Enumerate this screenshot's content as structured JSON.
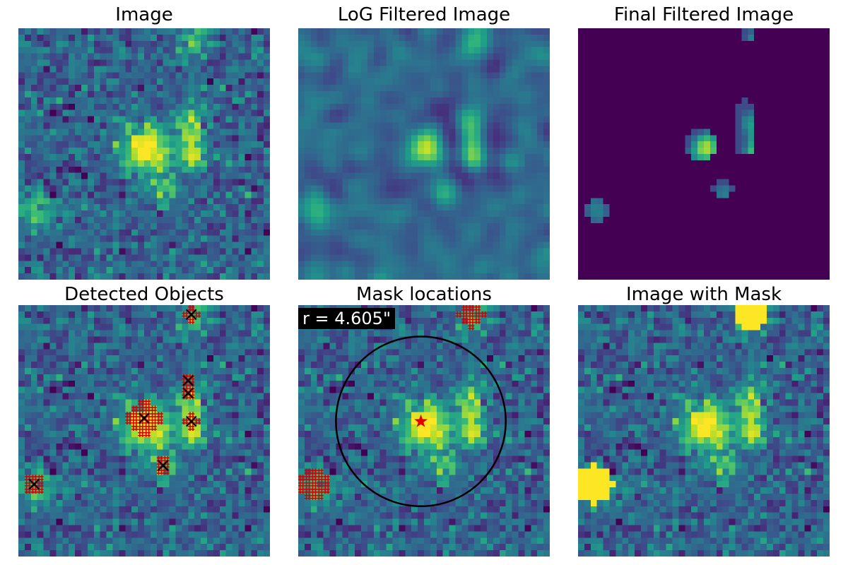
{
  "panels": [
    {
      "title": "Image",
      "kind": "image"
    },
    {
      "title": "LoG Filtered Image",
      "kind": "log"
    },
    {
      "title": "Final Filtered Image",
      "kind": "final"
    },
    {
      "title": "Detected Objects",
      "kind": "detected"
    },
    {
      "title": "Mask locations",
      "kind": "mask_locations"
    },
    {
      "title": "Image with Mask",
      "kind": "masked"
    }
  ],
  "grid_size": 40,
  "colormap": "viridis",
  "mask_color": "#fde724",
  "hatch_color": "#d40000",
  "marker_color": "#000000",
  "star_color": "#e00000",
  "circle_color": "#000000",
  "circle_label": "r = 4.605\"",
  "sources": [
    {
      "name": "central-galaxy",
      "col": 20.0,
      "row": 18.5,
      "sigma": 2.6,
      "amp": 1.0
    },
    {
      "name": "arc-top",
      "col": 27.0,
      "row": 13.5,
      "sigma": 1.4,
      "amp": 0.55
    },
    {
      "name": "arc-middle",
      "col": 27.0,
      "row": 17.0,
      "sigma": 1.4,
      "amp": 0.6
    },
    {
      "name": "arc-bottom",
      "col": 27.5,
      "row": 20.5,
      "sigma": 1.5,
      "amp": 0.55
    },
    {
      "name": "lower-knot",
      "col": 23.0,
      "row": 25.0,
      "sigma": 1.5,
      "amp": 0.5
    },
    {
      "name": "top-right-blob",
      "col": 27.5,
      "row": 1.5,
      "sigma": 1.6,
      "amp": 0.5
    },
    {
      "name": "left-blob",
      "col": 2.5,
      "row": 28.5,
      "sigma": 2.0,
      "amp": 0.45
    }
  ],
  "detections": [
    {
      "col": 20.0,
      "row": 18.0,
      "r": 2.6
    },
    {
      "col": 27.0,
      "row": 14.0,
      "r": 1.3
    },
    {
      "col": 27.5,
      "row": 18.5,
      "r": 1.3
    },
    {
      "col": 27.0,
      "row": 12.0,
      "r": 0.8
    },
    {
      "col": 23.0,
      "row": 25.5,
      "r": 1.3
    },
    {
      "col": 27.5,
      "row": 1.5,
      "r": 1.3
    },
    {
      "col": 2.5,
      "row": 28.5,
      "r": 1.6
    }
  ],
  "log_objects": [
    {
      "col": 19.5,
      "row": 18.5,
      "r": 2.2
    },
    {
      "col": 26.5,
      "row": 13.0,
      "r": 1.1
    },
    {
      "col": 26.5,
      "row": 15.5,
      "r": 0.9
    },
    {
      "col": 26.5,
      "row": 18.5,
      "r": 1.0
    },
    {
      "col": 23.0,
      "row": 25.5,
      "r": 1.2
    },
    {
      "col": 27.0,
      "row": 1.0,
      "r": 0.9
    },
    {
      "col": 3.0,
      "row": 29.0,
      "r": 1.3
    }
  ],
  "mask_regions": [
    {
      "col": 27.5,
      "row": 1.5,
      "r": 2.8
    },
    {
      "col": 2.5,
      "row": 28.5,
      "r": 3.0
    }
  ],
  "circle": {
    "col": 19.5,
    "row": 18.5,
    "r": 13.5
  },
  "star": {
    "col": 19.5,
    "row": 18.5
  }
}
